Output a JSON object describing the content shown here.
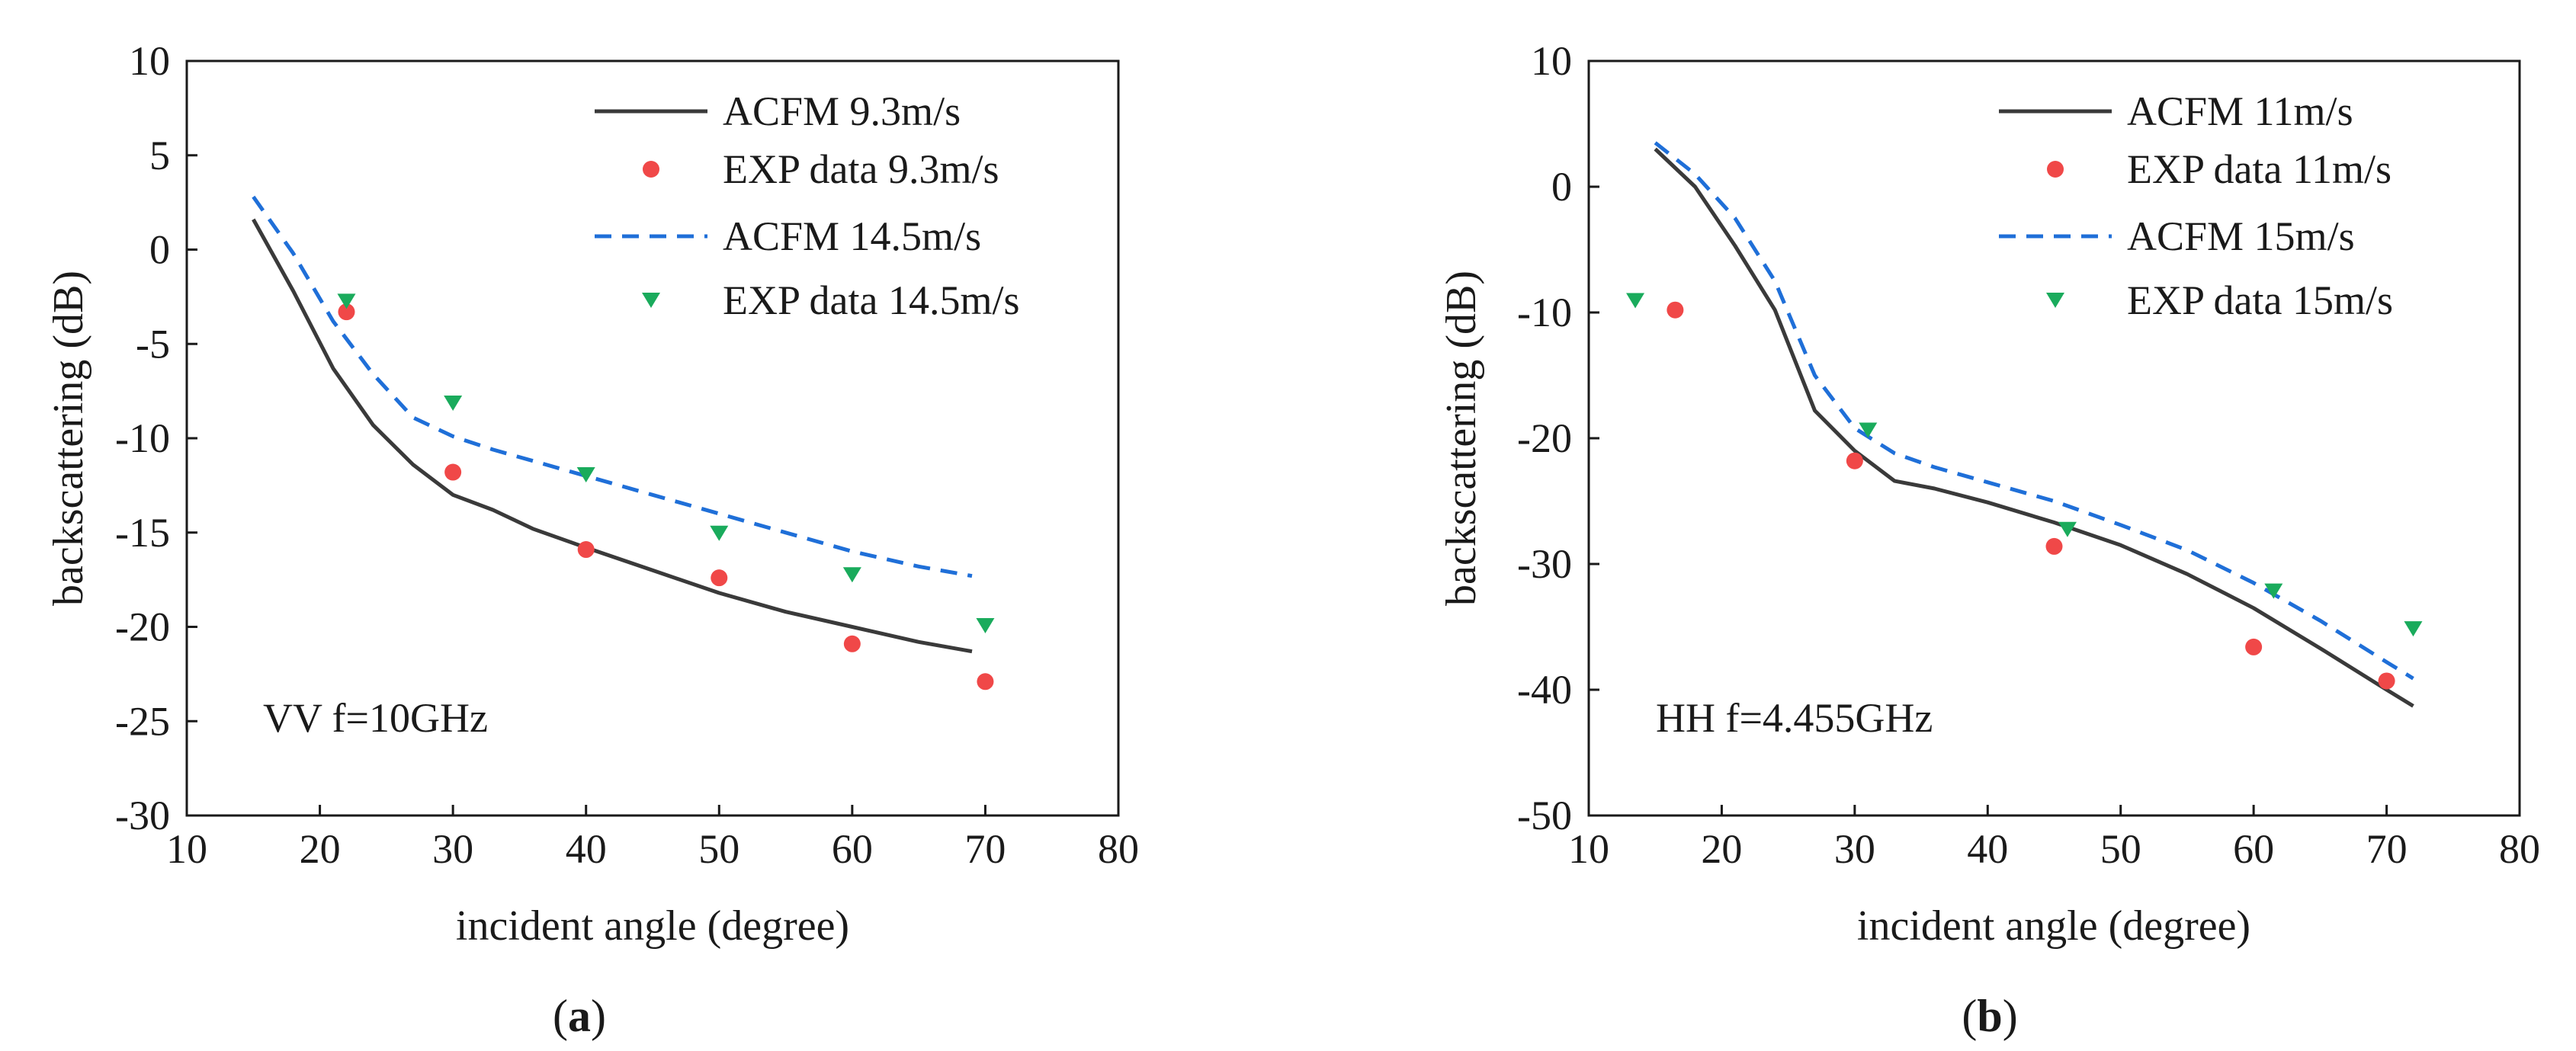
{
  "chart_data": [
    {
      "panel": "a",
      "type": "line",
      "caption_open": "(",
      "caption_letter": "a",
      "caption_close": ")",
      "title": "",
      "xlabel": "incident angle (degree)",
      "ylabel": "backscattering (dB)",
      "xlim": [
        10,
        80
      ],
      "ylim": [
        -30,
        10
      ],
      "xticks": [
        10,
        20,
        30,
        40,
        50,
        60,
        70,
        80
      ],
      "yticks": [
        -30,
        -25,
        -20,
        -15,
        -10,
        -5,
        0,
        5,
        10
      ],
      "grid": false,
      "legend_position": "top-right",
      "annotation": "VV f=10GHz",
      "series": [
        {
          "name": "ACFM  9.3m/s",
          "kind": "line",
          "style": "solid",
          "color": "#3a3a3a",
          "x": [
            15,
            18,
            21,
            24,
            27,
            30,
            33,
            36,
            40,
            45,
            50,
            55,
            60,
            65,
            69
          ],
          "y": [
            1.6,
            -2.2,
            -6.3,
            -9.3,
            -11.4,
            -13.0,
            -13.8,
            -14.8,
            -15.8,
            -17.0,
            -18.2,
            -19.2,
            -20.0,
            -20.8,
            -21.3
          ]
        },
        {
          "name": "EXP data 9.3m/s",
          "kind": "scatter",
          "marker": "circle",
          "color": "#f04848",
          "x": [
            22,
            30,
            40,
            50,
            60,
            70
          ],
          "y": [
            -3.3,
            -11.8,
            -15.9,
            -17.4,
            -20.9,
            -22.9
          ]
        },
        {
          "name": "ACFM  14.5m/s",
          "kind": "line",
          "style": "dashed",
          "color": "#1f6fd8",
          "x": [
            15,
            18,
            21,
            24,
            27,
            30,
            33,
            36,
            40,
            45,
            50,
            55,
            60,
            65,
            69
          ],
          "y": [
            2.8,
            -0.2,
            -3.8,
            -6.6,
            -8.9,
            -9.9,
            -10.6,
            -11.2,
            -12.0,
            -13.0,
            -14.0,
            -15.0,
            -16.0,
            -16.8,
            -17.3
          ]
        },
        {
          "name": "EXP data 14.5m/s",
          "kind": "scatter",
          "marker": "triangle-down",
          "color": "#1aab5c",
          "x": [
            22,
            30,
            40,
            50,
            60,
            70
          ],
          "y": [
            -2.7,
            -8.1,
            -11.9,
            -15.0,
            -17.2,
            -19.9
          ]
        }
      ]
    },
    {
      "panel": "b",
      "type": "line",
      "caption_open": "(",
      "caption_letter": "b",
      "caption_close": ")",
      "title": "",
      "xlabel": "incident angle (degree)",
      "ylabel": "backscattering (dB)",
      "xlim": [
        10,
        80
      ],
      "ylim": [
        -50,
        10
      ],
      "xticks": [
        10,
        20,
        30,
        40,
        50,
        60,
        70,
        80
      ],
      "yticks": [
        -50,
        -40,
        -30,
        -20,
        -10,
        0,
        10
      ],
      "grid": false,
      "legend_position": "top-right",
      "annotation": "HH f=4.455GHz",
      "series": [
        {
          "name": "ACFM  11m/s",
          "kind": "line",
          "style": "solid",
          "color": "#3a3a3a",
          "x": [
            15,
            18,
            21,
            24,
            27,
            30,
            33,
            36,
            40,
            45,
            50,
            55,
            60,
            65,
            70,
            72
          ],
          "y": [
            3.0,
            0.0,
            -4.7,
            -9.8,
            -17.8,
            -21.0,
            -23.4,
            -24.0,
            -25.1,
            -26.7,
            -28.5,
            -30.8,
            -33.5,
            -36.7,
            -40.0,
            -41.3
          ]
        },
        {
          "name": "EXP data 11m/s",
          "kind": "scatter",
          "marker": "circle",
          "color": "#f04848",
          "x": [
            16.5,
            30,
            45,
            60,
            70
          ],
          "y": [
            -9.8,
            -21.8,
            -28.6,
            -36.6,
            -39.3
          ]
        },
        {
          "name": "ACFM  15m/s",
          "kind": "line",
          "style": "dashed",
          "color": "#1f6fd8",
          "x": [
            15,
            18,
            21,
            24,
            27,
            30,
            33,
            36,
            40,
            45,
            50,
            55,
            60,
            65,
            70,
            72
          ],
          "y": [
            3.5,
            1.0,
            -2.5,
            -7.5,
            -15.0,
            -19.2,
            -21.2,
            -22.3,
            -23.5,
            -25.0,
            -26.9,
            -28.9,
            -31.5,
            -34.5,
            -37.8,
            -39.1
          ]
        },
        {
          "name": "EXP data 15m/s",
          "kind": "scatter",
          "marker": "triangle-down",
          "color": "#1aab5c",
          "x": [
            13.5,
            31,
            46,
            61.5,
            72
          ],
          "y": [
            -9.0,
            -19.3,
            -27.2,
            -32.1,
            -35.1
          ]
        }
      ]
    }
  ]
}
